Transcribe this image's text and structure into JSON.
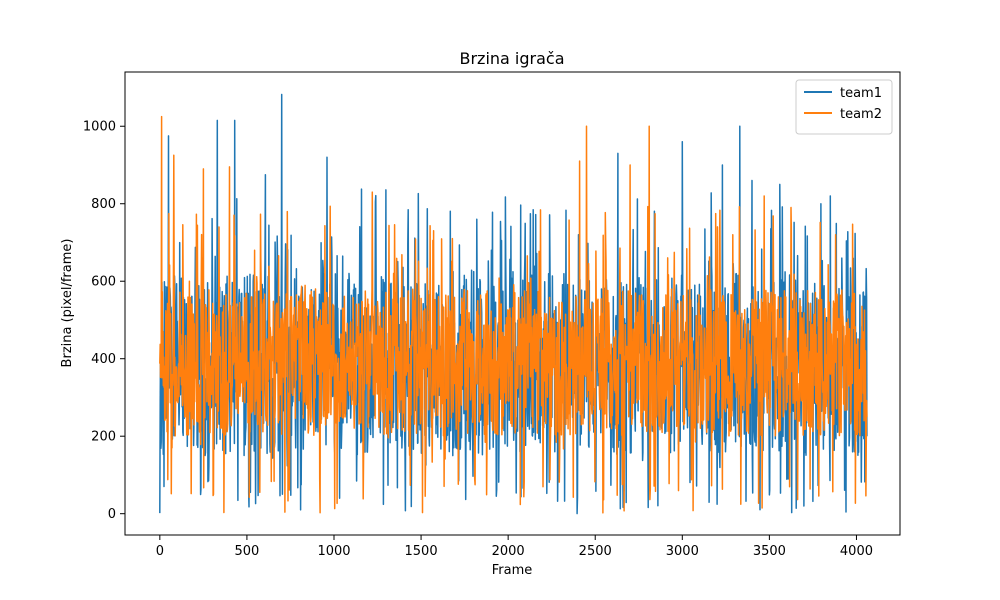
{
  "chart_data": {
    "type": "line",
    "title": "Brzina igrača",
    "xlabel": "Frame",
    "ylabel": "Brzina (pixel/frame)",
    "xlim": [
      -200,
      4250
    ],
    "ylim": [
      -55,
      1140
    ],
    "x_ticks": [
      0,
      500,
      1000,
      1500,
      2000,
      2500,
      3000,
      3500,
      4000
    ],
    "y_ticks": [
      0,
      200,
      400,
      600,
      800,
      1000
    ],
    "grid": false,
    "legend_position": "top-right",
    "series": [
      {
        "name": "team1",
        "color": "#1f77b4",
        "x_start": 0,
        "x_end": 4060,
        "typical_range": [
          150,
          620
        ],
        "min": 0,
        "max": 1082,
        "peaks": [
          [
            50,
            975
          ],
          [
            330,
            1015
          ],
          [
            430,
            1015
          ],
          [
            605,
            875
          ],
          [
            700,
            1082
          ],
          [
            960,
            920
          ],
          [
            1820,
            760
          ],
          [
            2630,
            930
          ],
          [
            3000,
            960
          ],
          [
            3230,
            900
          ],
          [
            3330,
            1000
          ],
          [
            3400,
            860
          ],
          [
            3560,
            850
          ],
          [
            3850,
            820
          ]
        ]
      },
      {
        "name": "team2",
        "color": "#ff7f0e",
        "x_start": 0,
        "x_end": 4060,
        "typical_range": [
          200,
          580
        ],
        "min": 0,
        "max": 1025,
        "peaks": [
          [
            10,
            1025
          ],
          [
            80,
            925
          ],
          [
            250,
            890
          ],
          [
            400,
            895
          ],
          [
            1220,
            830
          ],
          [
            1680,
            710
          ],
          [
            2410,
            910
          ],
          [
            2450,
            1000
          ],
          [
            2700,
            900
          ],
          [
            2810,
            1000
          ],
          [
            3470,
            820
          ],
          [
            3880,
            720
          ]
        ]
      }
    ]
  }
}
